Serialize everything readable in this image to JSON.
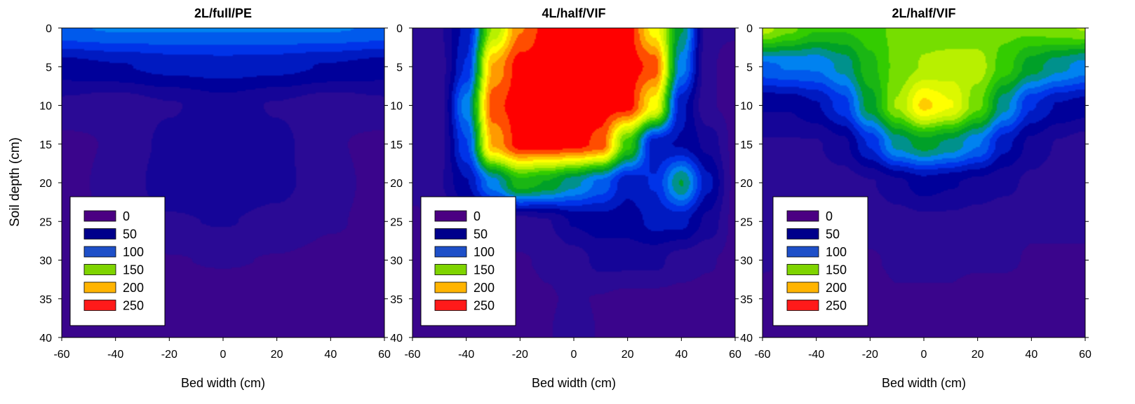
{
  "ylabel": "Soil depth (cm)",
  "legend": {
    "labels": [
      "0",
      "50",
      "100",
      "150",
      "200",
      "250"
    ],
    "swatch_colors": [
      "#4b0082",
      "#00008b",
      "#1e4fc8",
      "#7fd400",
      "#ffb400",
      "#ff1a1a"
    ]
  },
  "colormap": {
    "stops": [
      0,
      25,
      50,
      75,
      100,
      125,
      150,
      175,
      200,
      225,
      250
    ],
    "colors": [
      "#4b0082",
      "#2a0a95",
      "#00009a",
      "#0033e8",
      "#0082f0",
      "#00a028",
      "#33cc00",
      "#b8f000",
      "#ffff00",
      "#ff9a00",
      "#ff0000"
    ]
  },
  "chart_data": [
    {
      "type": "heatmap",
      "title": "2L/full/PE",
      "xlabel": "Bed width (cm)",
      "ylabel": "Soil depth (cm)",
      "xlim": [
        -60,
        60
      ],
      "ylim": [
        0,
        40
      ],
      "y_reversed": true,
      "xticks": [
        "-60",
        "-40",
        "-20",
        "0",
        "20",
        "40",
        "60"
      ],
      "yticks": [
        "0",
        "5",
        "10",
        "15",
        "20",
        "25",
        "30",
        "35",
        "40"
      ],
      "legend_position": "bottom-left",
      "grid": false,
      "approx_nitrate_max": 95,
      "x": [
        -60,
        -40,
        -20,
        0,
        20,
        40,
        60
      ],
      "y": [
        0,
        5,
        10,
        15,
        20,
        25,
        30,
        35,
        40
      ],
      "z": [
        [
          92,
          95,
          95,
          95,
          95,
          95,
          92
        ],
        [
          50,
          55,
          60,
          62,
          60,
          55,
          50
        ],
        [
          28,
          22,
          30,
          38,
          30,
          22,
          28
        ],
        [
          15,
          20,
          35,
          40,
          35,
          20,
          15
        ],
        [
          15,
          22,
          38,
          40,
          35,
          22,
          15
        ],
        [
          15,
          20,
          30,
          32,
          28,
          20,
          15
        ],
        [
          15,
          15,
          18,
          20,
          18,
          15,
          15
        ],
        [
          12,
          10,
          10,
          10,
          10,
          12,
          15
        ],
        [
          10,
          10,
          12,
          12,
          12,
          12,
          18
        ]
      ]
    },
    {
      "type": "heatmap",
      "title": "4L/half/VIF",
      "xlabel": "Bed width (cm)",
      "xlim": [
        -60,
        60
      ],
      "ylim": [
        0,
        40
      ],
      "y_reversed": true,
      "xticks": [
        "-60",
        "-40",
        "-20",
        "0",
        "20",
        "40",
        "60"
      ],
      "yticks": [
        "0",
        "5",
        "10",
        "15",
        "20",
        "25",
        "30",
        "35",
        "40"
      ],
      "legend_position": "bottom-left",
      "grid": false,
      "approx_nitrate_max": 250,
      "x": [
        -60,
        -50,
        -40,
        -30,
        -20,
        -10,
        0,
        10,
        20,
        30,
        40,
        50,
        60
      ],
      "y": [
        0,
        5,
        10,
        15,
        20,
        25,
        30,
        35,
        40
      ],
      "z": [
        [
          20,
          30,
          60,
          170,
          230,
          250,
          250,
          250,
          250,
          200,
          120,
          20,
          20
        ],
        [
          20,
          25,
          70,
          220,
          250,
          250,
          250,
          250,
          250,
          240,
          100,
          20,
          15
        ],
        [
          20,
          25,
          100,
          240,
          250,
          250,
          250,
          250,
          250,
          200,
          60,
          20,
          15
        ],
        [
          20,
          25,
          80,
          220,
          250,
          250,
          250,
          240,
          150,
          60,
          55,
          40,
          15
        ],
        [
          25,
          30,
          55,
          100,
          140,
          130,
          110,
          90,
          60,
          70,
          120,
          60,
          15
        ],
        [
          15,
          20,
          30,
          30,
          25,
          30,
          45,
          50,
          50,
          60,
          60,
          40,
          15
        ],
        [
          12,
          12,
          18,
          18,
          18,
          20,
          25,
          35,
          35,
          35,
          25,
          20,
          15
        ],
        [
          15,
          15,
          15,
          15,
          15,
          18,
          20,
          18,
          15,
          15,
          15,
          15,
          15
        ],
        [
          15,
          15,
          15,
          15,
          15,
          18,
          25,
          18,
          15,
          15,
          15,
          15,
          15
        ]
      ]
    },
    {
      "type": "heatmap",
      "title": "2L/half/VIF",
      "xlabel": "Bed width (cm)",
      "xlim": [
        -60,
        60
      ],
      "ylim": [
        0,
        40
      ],
      "y_reversed": true,
      "xticks": [
        "-60",
        "-40",
        "-20",
        "0",
        "20",
        "40",
        "60"
      ],
      "yticks": [
        "0",
        "5",
        "10",
        "15",
        "20",
        "25",
        "30",
        "35",
        "40"
      ],
      "legend_position": "bottom-left",
      "grid": false,
      "approx_nitrate_max": 215,
      "x": [
        -60,
        -50,
        -40,
        -30,
        -20,
        -10,
        0,
        10,
        20,
        30,
        40,
        50,
        60
      ],
      "y": [
        0,
        5,
        10,
        15,
        20,
        25,
        30,
        35,
        40
      ],
      "z": [
        [
          175,
          160,
          145,
          145,
          150,
          160,
          165,
          160,
          160,
          160,
          160,
          165,
          170
        ],
        [
          90,
          95,
          95,
          110,
          140,
          160,
          170,
          175,
          175,
          150,
          125,
          110,
          100
        ],
        [
          45,
          45,
          55,
          75,
          125,
          170,
          210,
          195,
          160,
          110,
          70,
          55,
          50
        ],
        [
          30,
          30,
          30,
          40,
          70,
          110,
          125,
          115,
          95,
          60,
          40,
          30,
          25
        ],
        [
          25,
          25,
          25,
          25,
          30,
          40,
          50,
          45,
          40,
          35,
          28,
          25,
          22
        ],
        [
          20,
          18,
          18,
          20,
          22,
          25,
          28,
          28,
          25,
          22,
          20,
          20,
          20
        ],
        [
          20,
          18,
          15,
          15,
          18,
          20,
          20,
          20,
          20,
          20,
          18,
          18,
          18
        ],
        [
          15,
          15,
          15,
          15,
          15,
          18,
          18,
          18,
          15,
          15,
          15,
          15,
          15
        ],
        [
          15,
          15,
          15,
          15,
          15,
          15,
          15,
          15,
          15,
          15,
          15,
          15,
          15
        ]
      ]
    }
  ]
}
